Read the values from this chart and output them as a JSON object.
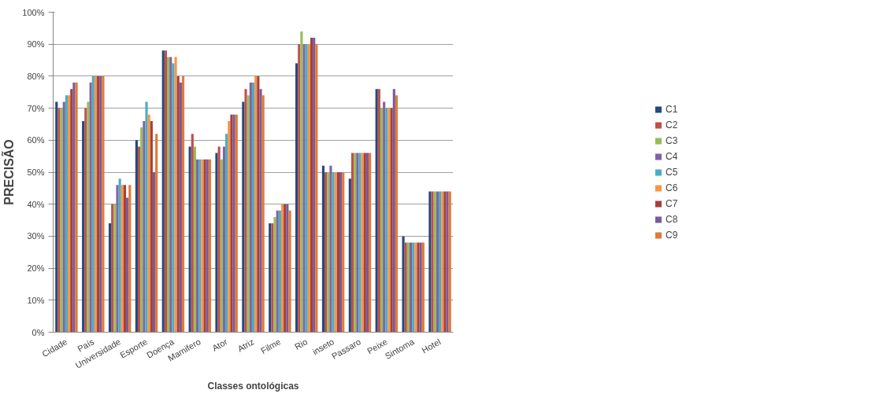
{
  "chart_data": {
    "type": "bar",
    "xlabel": "Classes ontológicas",
    "ylabel": "PRECISÃO",
    "categories": [
      "Cidade",
      "País",
      "Universidade",
      "Esporte",
      "Doença",
      "Mamifero",
      "Ator",
      "Atriz",
      "Filme",
      "Rio",
      "inseto",
      "Passaro",
      "Peixe",
      "Sintoma",
      "Hotel"
    ],
    "series": [
      {
        "name": "C1",
        "color": "#254a7c",
        "values": [
          72,
          66,
          34,
          60,
          88,
          58,
          56,
          72,
          34,
          84,
          52,
          48,
          76,
          30,
          44
        ]
      },
      {
        "name": "C2",
        "color": "#c0504d",
        "values": [
          70,
          70,
          40,
          58,
          88,
          62,
          58,
          76,
          34,
          90,
          50,
          56,
          76,
          28,
          44
        ]
      },
      {
        "name": "C3",
        "color": "#9bbb59",
        "values": [
          70,
          72,
          40,
          64,
          86,
          58,
          54,
          74,
          36,
          94,
          50,
          56,
          70,
          28,
          44
        ]
      },
      {
        "name": "C4",
        "color": "#8064a2",
        "values": [
          72,
          78,
          46,
          66,
          86,
          54,
          58,
          78,
          38,
          90,
          52,
          56,
          72,
          28,
          44
        ]
      },
      {
        "name": "C5",
        "color": "#4bacc6",
        "values": [
          74,
          80,
          48,
          72,
          84,
          54,
          62,
          78,
          38,
          90,
          50,
          56,
          70,
          28,
          44
        ]
      },
      {
        "name": "C6",
        "color": "#f79646",
        "values": [
          74,
          80,
          46,
          68,
          86,
          54,
          66,
          80,
          40,
          90,
          50,
          56,
          70,
          28,
          44
        ]
      },
      {
        "name": "C7",
        "color": "#a5403d",
        "values": [
          76,
          80,
          46,
          66,
          80,
          54,
          68,
          80,
          40,
          92,
          50,
          56,
          70,
          28,
          44
        ]
      },
      {
        "name": "C8",
        "color": "#7a5a9a",
        "values": [
          78,
          80,
          42,
          50,
          78,
          54,
          68,
          76,
          40,
          92,
          50,
          56,
          76,
          28,
          44
        ]
      },
      {
        "name": "C9",
        "color": "#e07b39",
        "values": [
          78,
          80,
          46,
          62,
          80,
          54,
          68,
          74,
          38,
          90,
          50,
          56,
          74,
          28,
          44
        ]
      }
    ],
    "ylim": [
      0,
      100
    ],
    "yticks": [
      {
        "value": 0,
        "label": "0%"
      },
      {
        "value": 10,
        "label": "10%"
      },
      {
        "value": 20,
        "label": "20%"
      },
      {
        "value": 30,
        "label": "30%"
      },
      {
        "value": 40,
        "label": "40%"
      },
      {
        "value": 50,
        "label": "50%"
      },
      {
        "value": 60,
        "label": "60%"
      },
      {
        "value": 70,
        "label": "70%"
      },
      {
        "value": 80,
        "label": "80%"
      },
      {
        "value": 90,
        "label": "90%"
      },
      {
        "value": 100,
        "label": "100%"
      }
    ],
    "grid": "y",
    "legend": "right"
  }
}
